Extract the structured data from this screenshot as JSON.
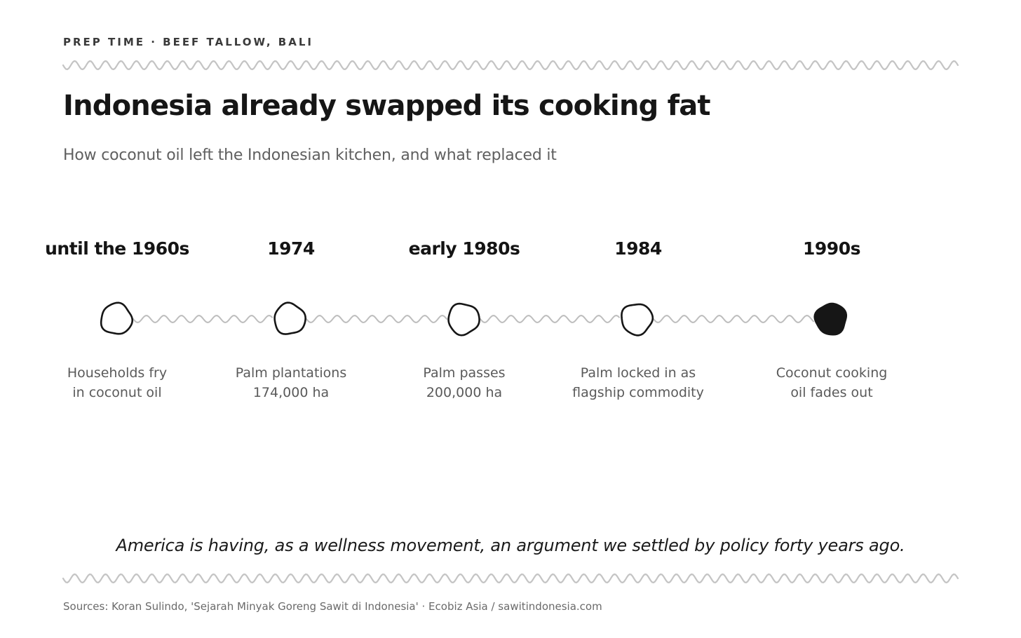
{
  "header": {
    "kicker": "PREP TIME · BEEF TALLOW, BALI",
    "title": "Indonesia already swapped its cooking fat",
    "subtitle": "How coconut oil left the Indonesian kitchen, and what replaced it"
  },
  "timeline": {
    "milestones": [
      {
        "year": "until the 1960s",
        "line1": "Households fry",
        "line2": "in coconut oil",
        "filled": false
      },
      {
        "year": "1974",
        "line1": "Palm plantations",
        "line2": "174,000 ha",
        "filled": false
      },
      {
        "year": "early 1980s",
        "line1": "Palm passes",
        "line2": "200,000 ha",
        "filled": false
      },
      {
        "year": "1984",
        "line1": "Palm locked in as",
        "line2": "flagship commodity",
        "filled": false
      },
      {
        "year": "1990s",
        "line1": "Coconut cooking",
        "line2": "oil fades out",
        "filled": true
      }
    ]
  },
  "quote": "America is having, as a wellness movement, an argument we settled by policy forty years ago.",
  "sources": "Sources: Koran Sulindo, 'Sejarah Minyak Goreng Sawit di Indonesia' · Ecobiz Asia / sawitindonesia.com",
  "colors": {
    "ink": "#161616",
    "wave": "#c4c4c4",
    "muted": "#5a5a5a"
  }
}
